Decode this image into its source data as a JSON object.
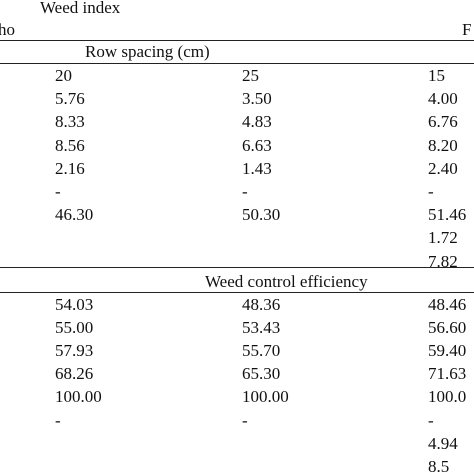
{
  "header": {
    "title": "Weed index",
    "left": "ho",
    "right": "F"
  },
  "sections": [
    {
      "title": "Row spacing (cm)",
      "rows": [
        [
          "20",
          "25",
          "15"
        ],
        [
          "5.76",
          "3.50",
          "4.00"
        ],
        [
          "8.33",
          "4.83",
          "6.76"
        ],
        [
          "8.56",
          "6.63",
          "8.20"
        ],
        [
          "2.16",
          "1.43",
          "2.40"
        ],
        [
          "-",
          "-",
          "-"
        ],
        [
          "46.30",
          "50.30",
          "51.46"
        ],
        [
          null,
          null,
          "1.72"
        ],
        [
          null,
          null,
          "7.82"
        ]
      ]
    },
    {
      "title": "Weed control efficiency",
      "rows": [
        [
          "54.03",
          "48.36",
          "48.46"
        ],
        [
          "55.00",
          "53.43",
          "56.60"
        ],
        [
          "57.93",
          "55.70",
          "59.40"
        ],
        [
          "68.26",
          "65.30",
          "71.63"
        ],
        [
          "100.00",
          "100.00",
          "100.0"
        ],
        [
          "-",
          "-",
          "-"
        ],
        [
          null,
          null,
          "4.94"
        ],
        [
          null,
          null,
          "8.5"
        ]
      ]
    }
  ]
}
